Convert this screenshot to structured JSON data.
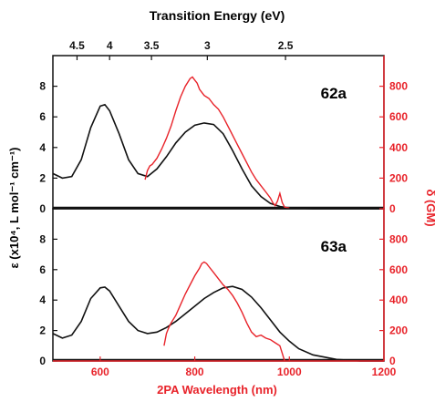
{
  "chart_data": {
    "type": "line",
    "top_axis": {
      "label": "Transition Energy (eV)",
      "ticks": [
        {
          "label": "4.5",
          "ev": 4.5
        },
        {
          "label": "4",
          "ev": 4.0
        },
        {
          "label": "3.5",
          "ev": 3.5
        },
        {
          "label": "3",
          "ev": 3.0
        },
        {
          "label": "2.5",
          "ev": 2.5
        }
      ]
    },
    "x_axis": {
      "label": "2PA Wavelength (nm)",
      "range": [
        500,
        1200
      ],
      "ticks": [
        {
          "v": 600,
          "label": "600"
        },
        {
          "v": 800,
          "label": "800"
        },
        {
          "v": 1000,
          "label": "1000"
        },
        {
          "v": 1200,
          "label": "1200"
        }
      ],
      "color": "#e8232a"
    },
    "left_axis": {
      "label": "ε (x10⁴, L mol⁻¹ cm⁻¹)",
      "range": [
        0,
        10
      ],
      "ticks": [
        {
          "v": 0,
          "label": "0"
        },
        {
          "v": 2,
          "label": "2"
        },
        {
          "v": 4,
          "label": "4"
        },
        {
          "v": 6,
          "label": "6"
        },
        {
          "v": 8,
          "label": "8"
        }
      ]
    },
    "right_axis": {
      "label": "δ (GM)",
      "range": [
        0,
        1000
      ],
      "ticks": [
        {
          "v": 0,
          "label": "0"
        },
        {
          "v": 200,
          "label": "200"
        },
        {
          "v": 400,
          "label": "400"
        },
        {
          "v": 600,
          "label": "600"
        },
        {
          "v": 800,
          "label": "800"
        }
      ],
      "color": "#e8232a"
    },
    "panels": [
      {
        "label": "62a",
        "absorption": {
          "color": "#111111",
          "x": [
            500,
            520,
            540,
            560,
            580,
            600,
            610,
            620,
            640,
            660,
            680,
            700,
            720,
            740,
            760,
            780,
            800,
            820,
            840,
            860,
            880,
            900,
            920,
            940,
            960,
            980,
            1000,
            1050,
            1100,
            1150,
            1200
          ],
          "y": [
            2.3,
            2.0,
            2.1,
            3.2,
            5.3,
            6.7,
            6.8,
            6.4,
            4.9,
            3.2,
            2.3,
            2.1,
            2.6,
            3.4,
            4.3,
            5.0,
            5.45,
            5.6,
            5.5,
            4.9,
            3.8,
            2.6,
            1.5,
            0.8,
            0.35,
            0.15,
            0.05,
            0.0,
            0.0,
            0.0,
            0.0
          ]
        },
        "tpa": {
          "color": "#e8232a",
          "x": [
            695,
            700,
            705,
            710,
            720,
            730,
            740,
            750,
            760,
            770,
            780,
            790,
            795,
            800,
            805,
            810,
            820,
            830,
            840,
            850,
            860,
            870,
            880,
            890,
            900,
            910,
            920,
            930,
            940,
            950,
            960,
            965,
            970,
            975,
            980,
            985,
            990,
            1000
          ],
          "y": [
            190,
            250,
            280,
            290,
            330,
            390,
            460,
            540,
            640,
            730,
            800,
            850,
            860,
            840,
            820,
            780,
            740,
            720,
            680,
            650,
            600,
            540,
            480,
            420,
            360,
            300,
            240,
            190,
            150,
            110,
            70,
            40,
            20,
            50,
            100,
            40,
            10,
            5
          ]
        }
      },
      {
        "label": "63a",
        "absorption": {
          "color": "#111111",
          "x": [
            500,
            520,
            540,
            560,
            580,
            600,
            610,
            620,
            640,
            660,
            680,
            700,
            720,
            740,
            760,
            780,
            800,
            820,
            840,
            860,
            880,
            900,
            920,
            940,
            960,
            980,
            1000,
            1020,
            1050,
            1100,
            1150,
            1200
          ],
          "y": [
            1.8,
            1.5,
            1.7,
            2.6,
            4.1,
            4.8,
            4.85,
            4.6,
            3.6,
            2.6,
            2.0,
            1.8,
            1.9,
            2.2,
            2.6,
            3.1,
            3.6,
            4.1,
            4.5,
            4.8,
            4.9,
            4.7,
            4.2,
            3.5,
            2.7,
            1.9,
            1.3,
            0.8,
            0.4,
            0.1,
            0.0,
            0.0
          ]
        },
        "tpa": {
          "color": "#e8232a",
          "x": [
            735,
            740,
            745,
            750,
            760,
            770,
            780,
            790,
            800,
            810,
            815,
            820,
            825,
            830,
            840,
            850,
            860,
            870,
            880,
            890,
            900,
            910,
            920,
            930,
            940,
            950,
            960,
            970,
            980,
            985,
            990
          ],
          "y": [
            100,
            180,
            220,
            250,
            300,
            370,
            440,
            500,
            560,
            610,
            640,
            650,
            640,
            620,
            580,
            540,
            500,
            470,
            430,
            380,
            320,
            250,
            190,
            160,
            170,
            150,
            140,
            120,
            100,
            50,
            0
          ]
        }
      }
    ]
  }
}
